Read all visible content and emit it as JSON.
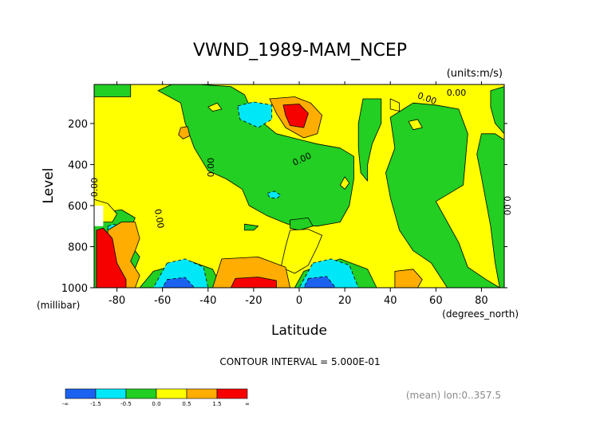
{
  "chart_data": {
    "type": "heatmap",
    "title": "VWND_1989-MAM_NCEP",
    "units_label": "(units:m/s)",
    "xlabel": "Latitude",
    "x_units_label": "(degrees_north)",
    "ylabel": "Level",
    "y_units_label": "(millibar)",
    "x_ticks": [
      -80,
      -60,
      -40,
      -20,
      0,
      20,
      40,
      60,
      80
    ],
    "x_tick_labels": [
      "-80",
      "-60",
      "-40",
      "-20",
      "0",
      "20",
      "40",
      "60",
      "80"
    ],
    "y_ticks": [
      200,
      400,
      600,
      800,
      1000
    ],
    "y_tick_labels": [
      "200",
      "400",
      "600",
      "800",
      "1000"
    ],
    "xlim": [
      -90,
      90
    ],
    "ylim": [
      1000,
      10
    ],
    "contour_interval_text": "CONTOUR INTERVAL = 5.000E-01",
    "footnote": "(mean) lon:0..357.5",
    "contour_labels": [
      "0.00",
      "0.00",
      "0.00",
      "0.00",
      "0.00",
      "0.00",
      "0.00"
    ],
    "colorbar": {
      "colors": [
        "#1c62f0",
        "#00e8f8",
        "#22cf22",
        "#ffff00",
        "#ffad00",
        "#f70000"
      ],
      "tick_labels": [
        "-∞",
        "-1.5",
        "-0.5",
        "0.0",
        "0.5",
        "1.5",
        "∞"
      ]
    },
    "regions": [
      {
        "level": "pos",
        "points": [
          [
            -90,
            10
          ],
          [
            90,
            10
          ],
          [
            90,
            1000
          ],
          [
            -90,
            1000
          ]
        ]
      },
      {
        "level": "neutral",
        "points": [
          [
            -90,
            10
          ],
          [
            -74,
            10
          ],
          [
            -74,
            70
          ],
          [
            -90,
            70
          ]
        ]
      },
      {
        "level": "neutral",
        "points": [
          [
            -62,
            40
          ],
          [
            -52,
            100
          ],
          [
            -50,
            200
          ],
          [
            -46,
            320
          ],
          [
            -40,
            430
          ],
          [
            -32,
            470
          ],
          [
            -25,
            520
          ],
          [
            -22,
            600
          ],
          [
            -14,
            650
          ],
          [
            -5,
            690
          ],
          [
            8,
            700
          ],
          [
            18,
            680
          ],
          [
            22,
            600
          ],
          [
            24,
            470
          ],
          [
            24,
            360
          ],
          [
            18,
            320
          ],
          [
            8,
            300
          ],
          [
            -10,
            250
          ],
          [
            -20,
            160
          ],
          [
            -24,
            60
          ],
          [
            -30,
            20
          ],
          [
            -44,
            10
          ],
          [
            -56,
            10
          ]
        ]
      },
      {
        "level": "neutral",
        "points": [
          [
            28,
            80
          ],
          [
            36,
            80
          ],
          [
            36,
            200
          ],
          [
            32,
            300
          ],
          [
            30,
            400
          ],
          [
            30,
            480
          ],
          [
            27,
            440
          ],
          [
            26,
            320
          ],
          [
            26,
            200
          ]
        ]
      },
      {
        "level": "neutral",
        "points": [
          [
            40,
            170
          ],
          [
            50,
            100
          ],
          [
            60,
            110
          ],
          [
            70,
            130
          ],
          [
            74,
            250
          ],
          [
            72,
            500
          ],
          [
            60,
            580
          ],
          [
            64,
            660
          ],
          [
            70,
            780
          ],
          [
            74,
            900
          ],
          [
            82,
            960
          ],
          [
            88,
            1000
          ],
          [
            65,
            1000
          ],
          [
            58,
            880
          ],
          [
            50,
            820
          ],
          [
            44,
            720
          ],
          [
            40,
            560
          ],
          [
            38,
            440
          ],
          [
            42,
            320
          ]
        ]
      },
      {
        "level": "neutral",
        "points": [
          [
            84,
            40
          ],
          [
            90,
            20
          ],
          [
            90,
            250
          ],
          [
            86,
            200
          ],
          [
            84,
            120
          ]
        ]
      },
      {
        "level": "neutral",
        "points": [
          [
            80,
            250
          ],
          [
            86,
            250
          ],
          [
            90,
            280
          ],
          [
            90,
            1000
          ],
          [
            88,
            1000
          ],
          [
            86,
            880
          ],
          [
            84,
            700
          ],
          [
            80,
            460
          ],
          [
            78,
            350
          ]
        ]
      },
      {
        "level": "neutral",
        "points": [
          [
            -90,
            640
          ],
          [
            -78,
            620
          ],
          [
            -72,
            660
          ],
          [
            -76,
            760
          ],
          [
            -70,
            850
          ],
          [
            -74,
            960
          ],
          [
            -76,
            1000
          ],
          [
            -90,
            1000
          ]
        ]
      },
      {
        "level": "neutral",
        "points": [
          [
            -64,
            920
          ],
          [
            -48,
            870
          ],
          [
            -38,
            910
          ],
          [
            -34,
            1000
          ],
          [
            -70,
            1000
          ]
        ]
      },
      {
        "level": "neutral",
        "points": [
          [
            2,
            920
          ],
          [
            18,
            860
          ],
          [
            30,
            910
          ],
          [
            34,
            1000
          ],
          [
            -2,
            1000
          ]
        ]
      },
      {
        "level": "neutral",
        "points": [
          [
            -30,
            930
          ],
          [
            -20,
            910
          ],
          [
            -10,
            950
          ],
          [
            -8,
            1000
          ],
          [
            -34,
            1000
          ]
        ]
      },
      {
        "level": "neutral",
        "points": [
          [
            -24,
            690
          ],
          [
            -18,
            700
          ],
          [
            -20,
            720
          ],
          [
            -24,
            720
          ]
        ]
      },
      {
        "level": "neutral",
        "points": [
          [
            -4,
            670
          ],
          [
            4,
            660
          ],
          [
            6,
            700
          ],
          [
            0,
            720
          ],
          [
            -4,
            710
          ]
        ]
      },
      {
        "level": "pos",
        "points": [
          [
            -4,
            720
          ],
          [
            4,
            715
          ],
          [
            10,
            745
          ],
          [
            8,
            800
          ],
          [
            4,
            890
          ],
          [
            -2,
            930
          ],
          [
            -8,
            900
          ],
          [
            -6,
            800
          ]
        ]
      },
      {
        "level": "pos",
        "points": [
          [
            -90,
            570
          ],
          [
            -84,
            590
          ],
          [
            -80,
            640
          ],
          [
            -82,
            680
          ],
          [
            -88,
            680
          ],
          [
            -90,
            660
          ]
        ]
      },
      {
        "level": "pos",
        "points": [
          [
            40,
            80
          ],
          [
            44,
            100
          ],
          [
            44,
            140
          ],
          [
            40,
            130
          ]
        ]
      },
      {
        "level": "pos",
        "points": [
          [
            -40,
            120
          ],
          [
            -36,
            100
          ],
          [
            -34,
            130
          ],
          [
            -38,
            140
          ]
        ]
      },
      {
        "level": "pos",
        "points": [
          [
            20,
            460
          ],
          [
            22,
            490
          ],
          [
            20,
            520
          ],
          [
            18,
            500
          ]
        ]
      },
      {
        "level": "pos",
        "points": [
          [
            48,
            190
          ],
          [
            52,
            180
          ],
          [
            54,
            220
          ],
          [
            50,
            230
          ]
        ]
      },
      {
        "level": "neg1",
        "points": [
          [
            -27,
            115
          ],
          [
            -20,
            95
          ],
          [
            -12,
            110
          ],
          [
            -12,
            180
          ],
          [
            -18,
            220
          ],
          [
            -26,
            180
          ]
        ]
      },
      {
        "level": "neg1",
        "points": [
          [
            -14,
            540
          ],
          [
            -11,
            530
          ],
          [
            -8,
            550
          ],
          [
            -10,
            565
          ],
          [
            -13,
            560
          ]
        ]
      },
      {
        "level": "neg1",
        "points": [
          [
            -84,
            700
          ],
          [
            -81,
            690
          ],
          [
            -79,
            710
          ],
          [
            -81,
            730
          ],
          [
            -84,
            725
          ]
        ]
      },
      {
        "level": "neg1",
        "points": [
          [
            -58,
            880
          ],
          [
            -50,
            860
          ],
          [
            -42,
            900
          ],
          [
            -40,
            1000
          ],
          [
            -64,
            1000
          ]
        ]
      },
      {
        "level": "neg1",
        "points": [
          [
            6,
            880
          ],
          [
            14,
            860
          ],
          [
            22,
            890
          ],
          [
            26,
            1000
          ],
          [
            0,
            1000
          ]
        ]
      },
      {
        "level": "neg2",
        "points": [
          [
            -58,
            960
          ],
          [
            -50,
            950
          ],
          [
            -46,
            1000
          ],
          [
            -60,
            1000
          ]
        ]
      },
      {
        "level": "neg2",
        "points": [
          [
            4,
            955
          ],
          [
            12,
            945
          ],
          [
            16,
            1000
          ],
          [
            2,
            1000
          ]
        ]
      },
      {
        "level": "pos1",
        "points": [
          [
            -13,
            80
          ],
          [
            -2,
            70
          ],
          [
            5,
            100
          ],
          [
            10,
            160
          ],
          [
            8,
            250
          ],
          [
            2,
            270
          ],
          [
            -6,
            220
          ],
          [
            -10,
            150
          ]
        ]
      },
      {
        "level": "pos1",
        "points": [
          [
            -52,
            220
          ],
          [
            -49,
            215
          ],
          [
            -48,
            260
          ],
          [
            -51,
            275
          ],
          [
            -53,
            255
          ]
        ]
      },
      {
        "level": "pos1",
        "points": [
          [
            -84,
            720
          ],
          [
            -78,
            680
          ],
          [
            -72,
            680
          ],
          [
            -70,
            760
          ],
          [
            -72,
            820
          ],
          [
            -74,
            870
          ],
          [
            -70,
            940
          ],
          [
            -72,
            1000
          ],
          [
            -82,
            1000
          ],
          [
            -84,
            900
          ]
        ]
      },
      {
        "level": "pos1",
        "points": [
          [
            -34,
            860
          ],
          [
            -18,
            850
          ],
          [
            -6,
            900
          ],
          [
            -4,
            1000
          ],
          [
            -38,
            1000
          ]
        ]
      },
      {
        "level": "pos1",
        "points": [
          [
            42,
            920
          ],
          [
            50,
            910
          ],
          [
            54,
            960
          ],
          [
            52,
            1000
          ],
          [
            42,
            1000
          ]
        ]
      },
      {
        "level": "pos2",
        "points": [
          [
            -7,
            110
          ],
          [
            0,
            105
          ],
          [
            4,
            150
          ],
          [
            2,
            220
          ],
          [
            -4,
            210
          ],
          [
            -6,
            160
          ]
        ]
      },
      {
        "level": "pos2",
        "points": [
          [
            -89,
            720
          ],
          [
            -86,
            710
          ],
          [
            -82,
            760
          ],
          [
            -80,
            880
          ],
          [
            -76,
            960
          ],
          [
            -76,
            1000
          ],
          [
            -89,
            1000
          ]
        ]
      },
      {
        "level": "pos2",
        "points": [
          [
            -28,
            955
          ],
          [
            -18,
            948
          ],
          [
            -10,
            965
          ],
          [
            -10,
            1000
          ],
          [
            -30,
            1000
          ]
        ]
      },
      {
        "level": "none",
        "points": [
          [
            -90,
            600
          ],
          [
            -86,
            600
          ],
          [
            -86,
            700
          ],
          [
            -90,
            700
          ]
        ]
      }
    ]
  }
}
